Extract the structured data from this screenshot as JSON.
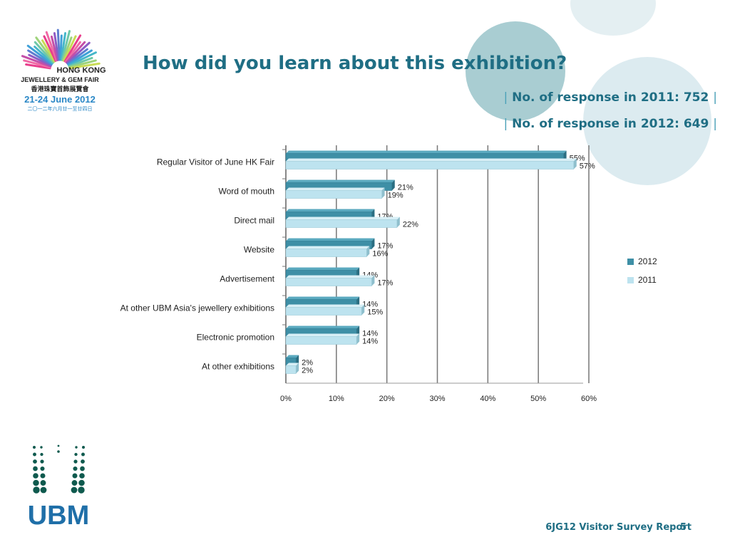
{
  "slide": {
    "title": "How did you learn about this exhibition?",
    "response_2011": "No. of response in 2011: 752",
    "response_2012": "No. of response in 2012: 649",
    "footer": "6JG12 Visitor Survey Report",
    "page": "5"
  },
  "logos": {
    "fair_line1": "HONG KONG",
    "fair_line2": "JEWELLERY & GEM FAIR",
    "fair_chinese": "香港珠寶首飾展覽會",
    "fair_dates": "21-24 June 2012",
    "fair_chinese_dates": "二〇一二年六月廿一至廿四日",
    "company": "UBM"
  },
  "colors": {
    "title": "#1F6E84",
    "bar_2012": "#3E8FA6",
    "bar_2011": "#BDE3EF",
    "deco_circle": "#DCEBF0",
    "deco_circle_dark": "#A9CDD2"
  },
  "chart_data": {
    "type": "bar",
    "orientation": "horizontal",
    "categories": [
      "Regular Visitor of June HK Fair",
      "Word of mouth",
      "Direct mail",
      "Website",
      "Advertisement",
      "At other UBM Asia's jewellery exhibitions",
      "Electronic promotion",
      "At other exhibitions"
    ],
    "series": [
      {
        "name": "2012",
        "values": [
          55,
          21,
          17,
          17,
          14,
          14,
          14,
          2
        ],
        "labels": [
          "55%",
          "21%",
          "17%",
          "17%",
          "14%",
          "14%",
          "14%",
          "2%"
        ]
      },
      {
        "name": "2011",
        "values": [
          57,
          19,
          22,
          16,
          17,
          15,
          14,
          2
        ],
        "labels": [
          "57%",
          "19%",
          "22%",
          "16%",
          "17%",
          "15%",
          "14%",
          "2%"
        ]
      }
    ],
    "xlim": [
      0,
      60
    ],
    "xticks": [
      "0%",
      "10%",
      "20%",
      "30%",
      "40%",
      "50%",
      "60%"
    ],
    "grid": true,
    "legend": "right"
  }
}
